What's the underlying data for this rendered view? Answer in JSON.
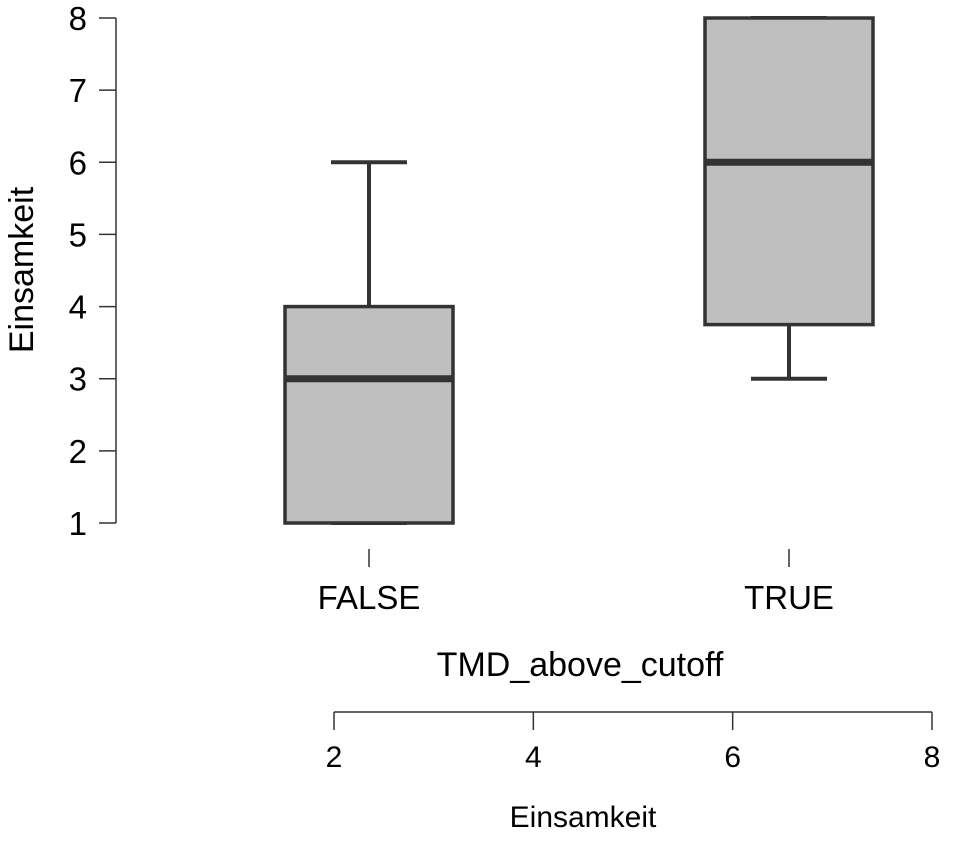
{
  "chart_data": {
    "type": "boxplot",
    "title": "",
    "xlabel": "TMD_above_cutoff",
    "ylabel": "Einsamkeit",
    "ylim": [
      1,
      8
    ],
    "y_ticks": [
      1,
      2,
      3,
      4,
      5,
      6,
      7,
      8
    ],
    "categories": [
      "FALSE",
      "TRUE"
    ],
    "boxes": [
      {
        "category": "FALSE",
        "whisker_low": 1,
        "q1": 1,
        "median": 3,
        "q3": 4,
        "whisker_high": 6
      },
      {
        "category": "TRUE",
        "whisker_low": 3,
        "q1": 3.75,
        "median": 6,
        "q3": 8,
        "whisker_high": 8
      }
    ],
    "secondary_axis": {
      "label": "Einsamkeit",
      "range": [
        2,
        8
      ],
      "ticks": [
        2,
        4,
        6,
        8
      ]
    },
    "grid": false,
    "colors": {
      "box_fill": "#bfbfbf",
      "stroke": "#333333",
      "axis": "#333333"
    }
  }
}
